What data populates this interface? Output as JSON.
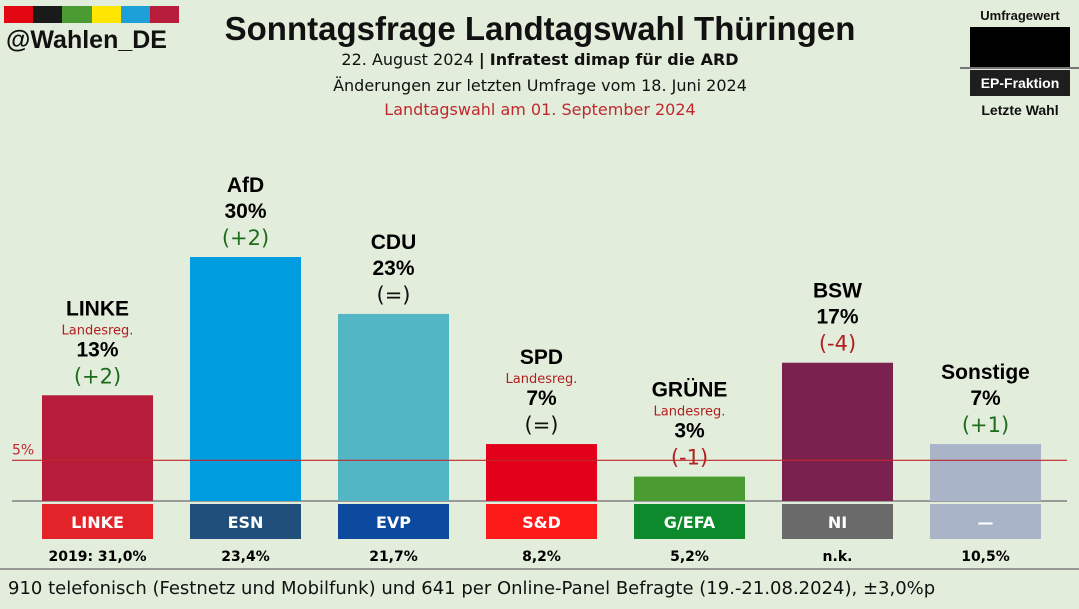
{
  "header": {
    "brand_colors": [
      "#e30613",
      "#1a1a1a",
      "#4a9b32",
      "#ffe600",
      "#1d9fd8",
      "#b71c3a"
    ],
    "handle": "@Wahlen_DE",
    "title": "Sonntagsfrage Landtagswahl Thüringen",
    "date": "22. August 2024",
    "separator": "|",
    "institute": "Infratest dimap für die ARD",
    "changes_note": "Änderungen zur letzten Umfrage vom 18. Juni 2024",
    "election_note": "Landtagswahl am 01. September 2024"
  },
  "legend": {
    "value_label": "Umfragewert",
    "faction_label": "EP-Fraktion",
    "last_label": "Letzte Wahl"
  },
  "chart_data": {
    "type": "bar",
    "categories": [
      "LINKE",
      "AfD",
      "CDU",
      "SPD",
      "GRÜNE",
      "BSW",
      "Sonstige"
    ],
    "values": [
      13,
      30,
      23,
      7,
      3,
      17,
      7
    ],
    "value_labels": [
      "13%",
      "30%",
      "23%",
      "7%",
      "3%",
      "17%",
      "7%"
    ],
    "changes": [
      "(+2)",
      "(+2)",
      "(=)",
      "(=)",
      "(-1)",
      "(-4)",
      "(+1)"
    ],
    "change_colors": [
      "#1e6b1e",
      "#1e6b1e",
      "#111111",
      "#111111",
      "#b02020",
      "#b02020",
      "#1e6b1e"
    ],
    "government_label": "Landesreg.",
    "government": [
      true,
      false,
      false,
      true,
      true,
      false,
      false
    ],
    "colors": [
      "#b71c3a",
      "#009ee0",
      "#52b6c4",
      "#e2001a",
      "#4a9b32",
      "#7b214e",
      "#aab4c8"
    ],
    "factions": [
      "LINKE",
      "ESN",
      "EVP",
      "S&D",
      "G/EFA",
      "NI",
      "—"
    ],
    "faction_colors": [
      "#e3232a",
      "#1f4f7a",
      "#0b4a9e",
      "#ff1a1a",
      "#0c8a2c",
      "#6a6a6a",
      "#aab4c8"
    ],
    "last_election": [
      "2019: 31,0%",
      "23,4%",
      "21,7%",
      "8,2%",
      "5,2%",
      "n.k.",
      "10,5%"
    ],
    "threshold": 5,
    "threshold_label": "5%",
    "ylim": [
      0,
      30
    ]
  },
  "footer": {
    "text": "910 telefonisch (Festnetz und Mobilfunk) und 641 per Online-Panel Befragte (19.-21.08.2024), ±3,0%p"
  }
}
